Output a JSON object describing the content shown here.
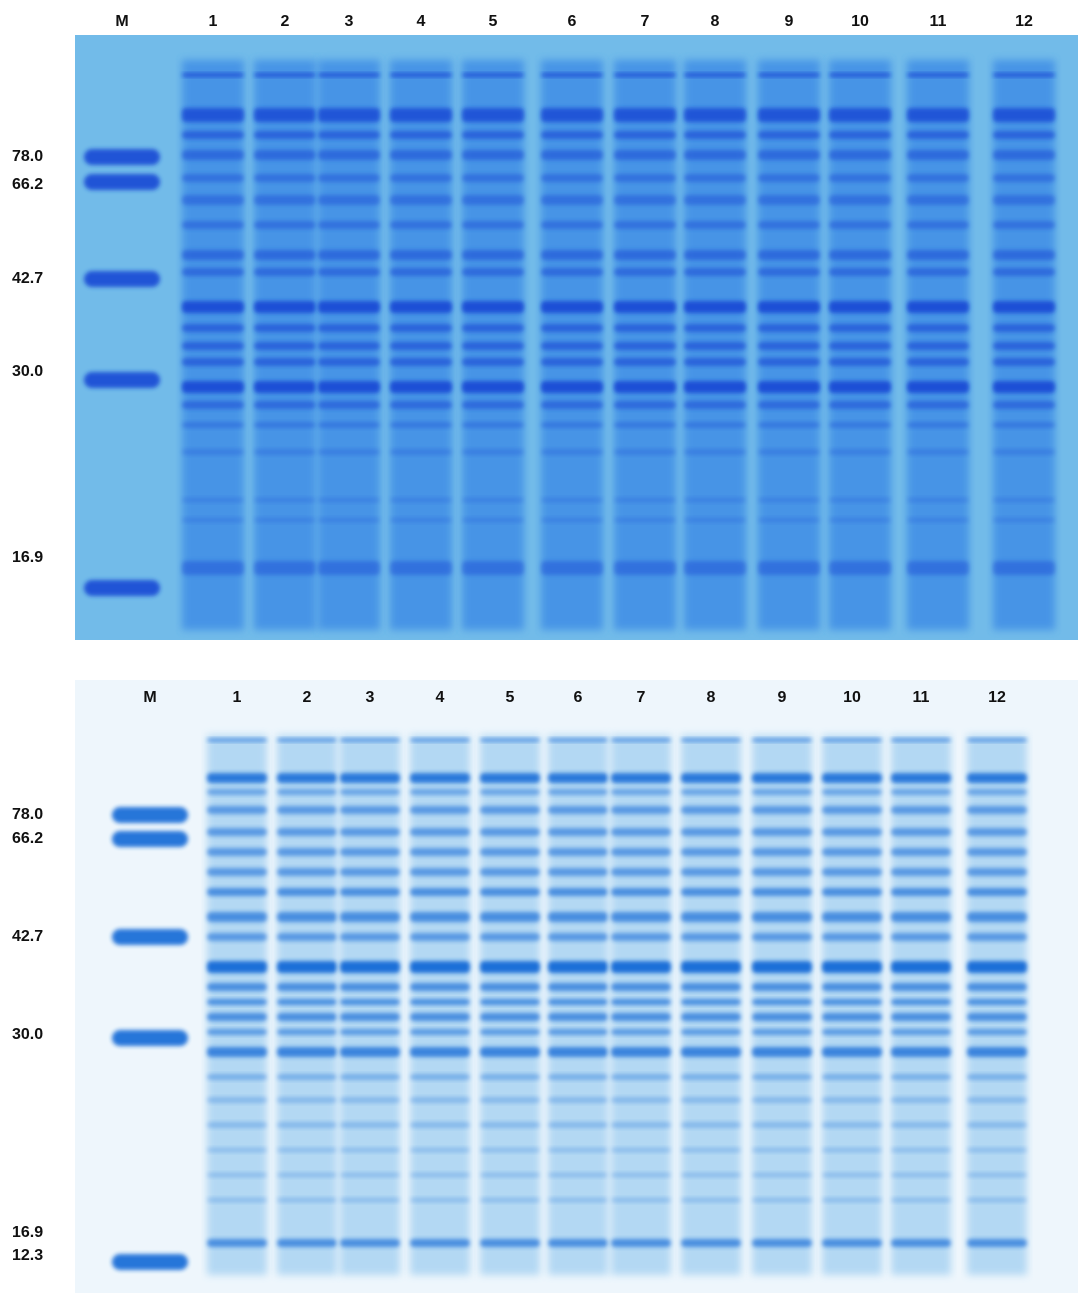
{
  "panels": [
    {
      "lane_labels": [
        "M",
        "1",
        "2",
        "3",
        "4",
        "5",
        "6",
        "7",
        "8",
        "9",
        "10",
        "11",
        "12"
      ],
      "marker_labels": [
        "78.0",
        "66.2",
        "42.7",
        "30.0",
        "16.9"
      ]
    },
    {
      "lane_labels": [
        "M",
        "1",
        "2",
        "3",
        "4",
        "5",
        "6",
        "7",
        "8",
        "9",
        "10",
        "11",
        "12"
      ],
      "marker_labels": [
        "78.0",
        "66.2",
        "42.7",
        "30.0",
        "16.9",
        "12.3"
      ]
    }
  ]
}
